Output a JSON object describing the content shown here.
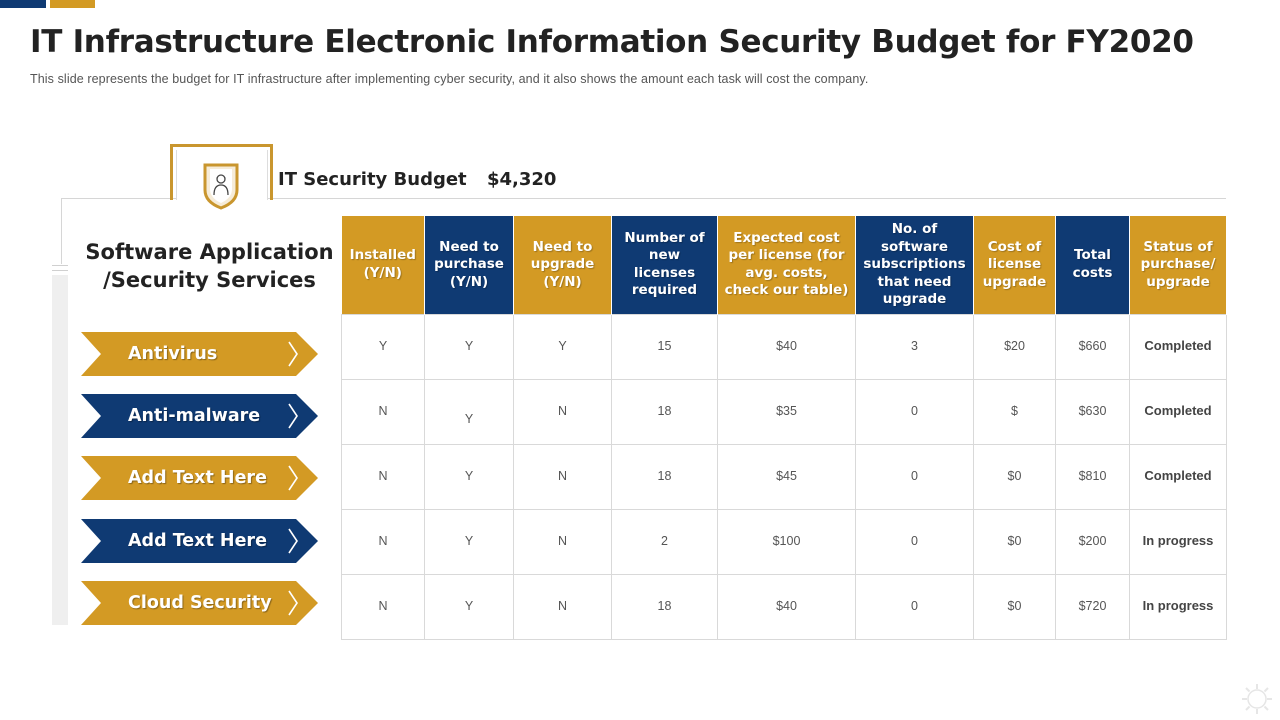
{
  "header": {
    "title": "IT Infrastructure Electronic Information Security Budget for FY2020",
    "subtitle": "This slide represents the budget for IT infrastructure after implementing cyber security, and it also shows the amount each task will cost the company."
  },
  "budget": {
    "icon": "shield-user-icon",
    "label": "IT Security Budget",
    "value": "$4,320"
  },
  "section_heading": "Software Application /Security Services",
  "colors": {
    "gold": "#d39a24",
    "navy": "#0f3a73"
  },
  "services": [
    {
      "label": "Antivirus",
      "color": "gold"
    },
    {
      "label": "Anti-malware",
      "color": "navy"
    },
    {
      "label": "Add Text Here",
      "color": "gold"
    },
    {
      "label": "Add Text Here",
      "color": "navy"
    },
    {
      "label": "Cloud Security",
      "color": "gold"
    }
  ],
  "table": {
    "headers": [
      "Installed (Y/N)",
      "Need to purchase (Y/N)",
      "Need to upgrade (Y/N)",
      "Number of new licenses required",
      "Expected cost per license (for avg. costs, check our table)",
      "No. of software subscriptions that need upgrade",
      "Cost of license upgrade",
      "Total costs",
      "Status of purchase/ upgrade"
    ],
    "rows": [
      [
        "Y",
        "Y",
        "Y",
        "15",
        "$40",
        "3",
        "$20",
        "$660",
        "Completed"
      ],
      [
        "N",
        "Y",
        "N",
        "18",
        "$35",
        "0",
        "$",
        "$630",
        "Completed"
      ],
      [
        "N",
        "Y",
        "N",
        "18",
        "$45",
        "0",
        "$0",
        "$810",
        "Completed"
      ],
      [
        "N",
        "Y",
        "N",
        "2",
        "$100",
        "0",
        "$0",
        "$200",
        "In progress"
      ],
      [
        "N",
        "Y",
        "N",
        "18",
        "$40",
        "0",
        "$0",
        "$720",
        "In progress"
      ]
    ]
  },
  "watermark_icon": "gear-icon"
}
